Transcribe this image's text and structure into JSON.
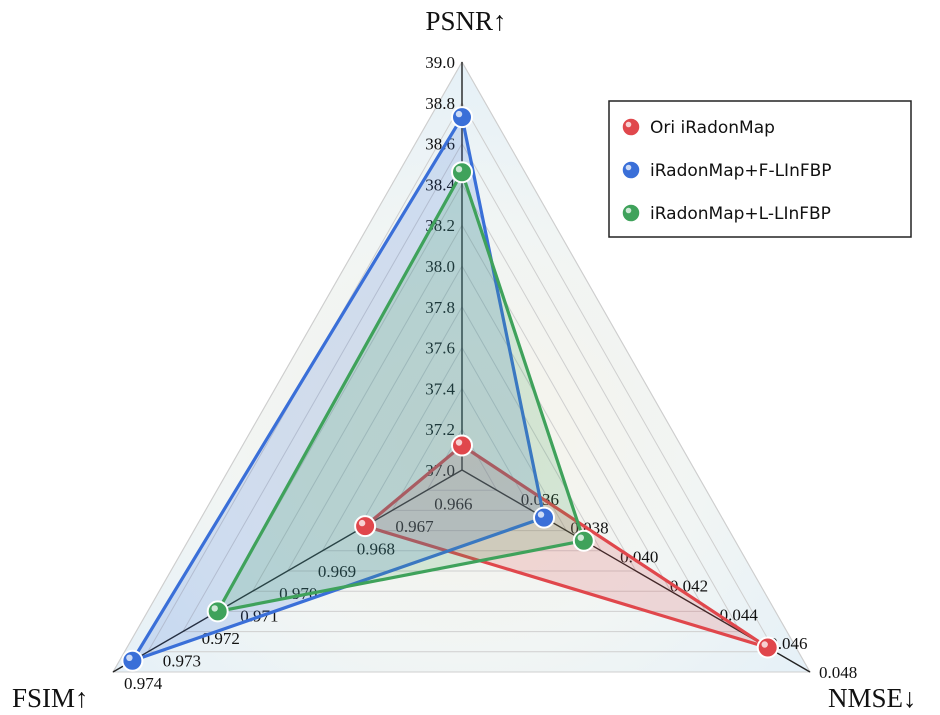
{
  "chart_data": {
    "type": "radar",
    "axes": [
      {
        "name": "PSNR↑",
        "min": 37.0,
        "max": 39.0,
        "ticks": [
          "37.0",
          "37.2",
          "37.4",
          "37.6",
          "37.8",
          "38.0",
          "38.2",
          "38.4",
          "38.6",
          "38.8",
          "39.0"
        ]
      },
      {
        "name": "NMSE↓",
        "min": 0.034,
        "max": 0.048,
        "ticks": [
          "0.036",
          "0.038",
          "0.040",
          "0.042",
          "0.044",
          "0.046",
          "0.048"
        ]
      },
      {
        "name": "FSIM↑",
        "min": 0.965,
        "max": 0.974,
        "ticks": [
          "0.966",
          "0.967",
          "0.968",
          "0.969",
          "0.970",
          "0.971",
          "0.972",
          "0.973",
          "0.974"
        ]
      }
    ],
    "series": [
      {
        "name": "Ori iRadonMap",
        "color": "#e0474c",
        "values": [
          37.12,
          0.0463,
          0.9675
        ]
      },
      {
        "name": "iRadonMap+F-LInFBP",
        "color": "#3a6fd8",
        "values": [
          38.73,
          0.0373,
          0.9735
        ]
      },
      {
        "name": "iRadonMap+L-LInFBP",
        "color": "#3fa25b",
        "values": [
          38.46,
          0.0389,
          0.9713
        ]
      }
    ],
    "legend": "top-right"
  }
}
